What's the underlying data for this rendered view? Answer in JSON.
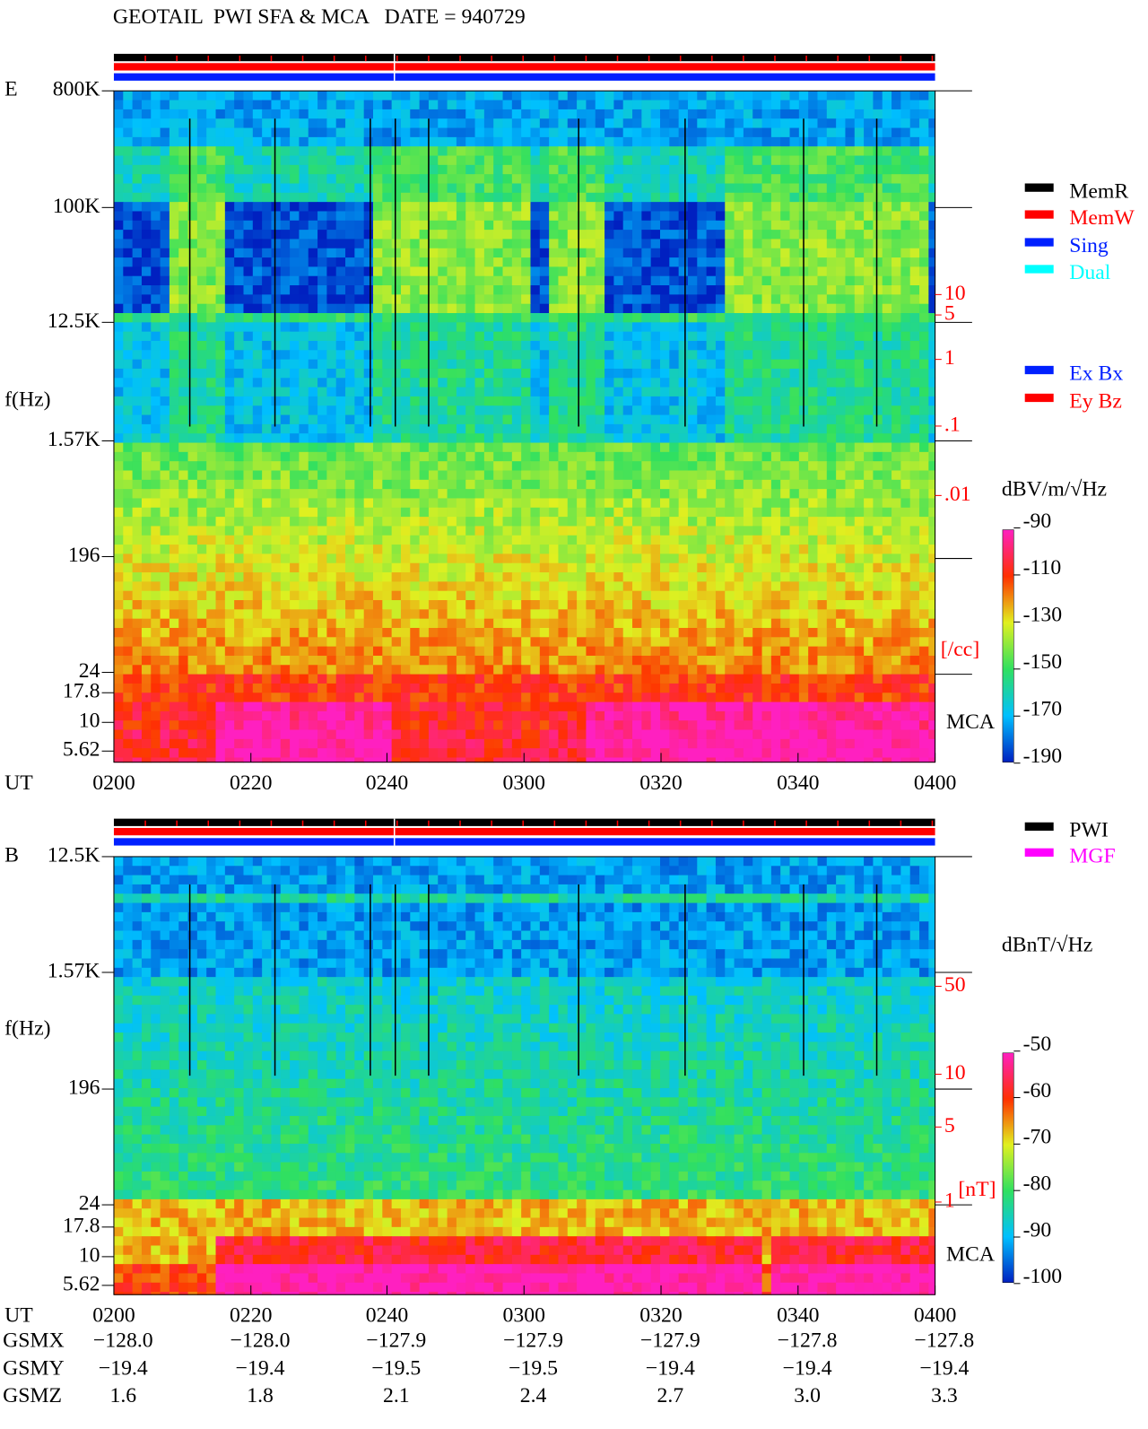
{
  "header": {
    "title": "GEOTAIL  PWI SFA & MCA   DATE = 940729"
  },
  "panels": [
    {
      "name": "E",
      "freq_labels": [
        "800K",
        "100K",
        "12.5K",
        "1.57K",
        "196",
        "24",
        "17.8",
        "10",
        "5.62"
      ],
      "freq_axis_label": "f(Hz)",
      "density_labels": [
        "10",
        "5",
        "1",
        ".1",
        ".01"
      ],
      "density_unit": "[/cc]",
      "mca_label": "MCA",
      "time_label": "UT",
      "time_labels": [
        "0200",
        "0220",
        "0240",
        "0300",
        "0320",
        "0340",
        "0400"
      ],
      "legend": [
        {
          "label": "MemR",
          "color": "#000000"
        },
        {
          "label": "MemW",
          "color": "#ff0000"
        },
        {
          "label": "Sing",
          "color": "#0020ff"
        },
        {
          "label": "Dual",
          "color": "#00ffff"
        },
        {
          "label": "Ex Bx",
          "color": "#0020ff"
        },
        {
          "label": "Ey Bz",
          "color": "#ff0000"
        }
      ],
      "colorbar": {
        "unit": "dBV/m/√Hz",
        "tick_labels": [
          "-90",
          "-110",
          "-130",
          "-150",
          "-170",
          "-190"
        ]
      }
    },
    {
      "name": "B",
      "freq_labels": [
        "12.5K",
        "1.57K",
        "196",
        "24",
        "17.8",
        "10",
        "5.62"
      ],
      "freq_axis_label": "f(Hz)",
      "density_labels": [
        "50",
        "10",
        "5",
        "1"
      ],
      "density_unit": "[nT]",
      "mca_label": "MCA",
      "time_label": "UT",
      "time_labels": [
        "0200",
        "0220",
        "0240",
        "0300",
        "0320",
        "0340",
        "0400"
      ],
      "legend": [
        {
          "label": "PWI",
          "color": "#000000"
        },
        {
          "label": "MGF",
          "color": "#ff00ff"
        }
      ],
      "colorbar": {
        "unit": "dBnT/√Hz",
        "tick_labels": [
          "-50",
          "-60",
          "-70",
          "-80",
          "-90",
          "-100"
        ]
      }
    }
  ],
  "position": {
    "labels": [
      "GSMX",
      "GSMY",
      "GSMZ"
    ],
    "rows": [
      [
        "−128.0",
        "−128.0",
        "−127.9",
        "−127.9",
        "−127.9",
        "−127.8",
        "−127.8"
      ],
      [
        "−19.4",
        "−19.4",
        "−19.5",
        "−19.5",
        "−19.4",
        "−19.4",
        "−19.4"
      ],
      [
        "1.6",
        "1.8",
        "2.1",
        "2.4",
        "2.7",
        "3.0",
        "3.3"
      ]
    ]
  }
}
